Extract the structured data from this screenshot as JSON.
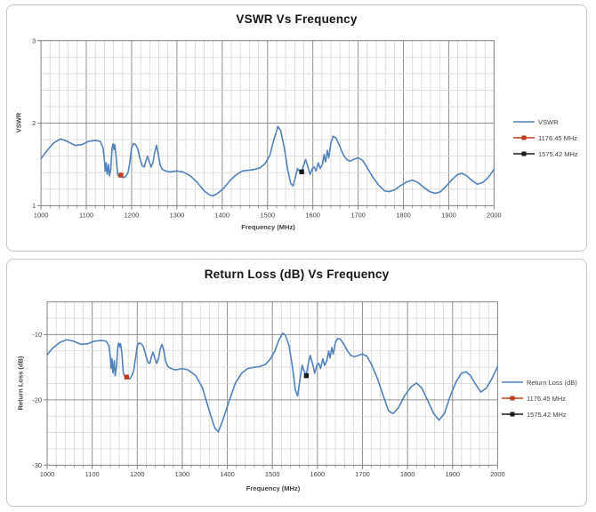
{
  "colors": {
    "series": "#4F81BD",
    "marker_red": "#C23B1D",
    "marker_black": "#1A1A1A",
    "grid_minor": "#D6D6D6",
    "grid_major": "#909090",
    "axis": "#7F7F7F",
    "panel_border": "#C6C6C6",
    "text": "#3F3F3F",
    "title": "#161616"
  },
  "chart_data": [
    {
      "type": "line",
      "title": "VSWR Vs Frequency",
      "xlabel": "Frequency (MHz)",
      "ylabel": "VSWR",
      "xlim": [
        1000,
        2000
      ],
      "ylim": [
        1,
        3
      ],
      "x_major": 100,
      "x_minor": 20,
      "y_major": 1,
      "y_minor": 0.2,
      "grid": true,
      "legend_position": "right",
      "x_ticks": [
        "1000",
        "1100",
        "1200",
        "1300",
        "1400",
        "1500",
        "1600",
        "1700",
        "1800",
        "1900",
        "2000"
      ],
      "y_ticks": [
        {
          "v": 1,
          "label": "1"
        },
        {
          "v": 2,
          "label": "2"
        },
        {
          "v": 3,
          "label": "3"
        }
      ],
      "legend": [
        {
          "label": "VSWR",
          "color": "#4F81BD",
          "marker": false
        },
        {
          "label": "1176.45 MHz",
          "color": "#C23B1D",
          "marker": true
        },
        {
          "label": "1575.42 MHz",
          "color": "#1A1A1A",
          "marker": true
        }
      ],
      "series": [
        {
          "name": "VSWR",
          "x": [
            1000,
            1012,
            1028,
            1043,
            1058,
            1075,
            1090,
            1105,
            1120,
            1131,
            1137,
            1140,
            1142,
            1144,
            1146,
            1149,
            1151,
            1154,
            1157,
            1159,
            1161,
            1163,
            1166,
            1169,
            1173,
            1178,
            1183,
            1188,
            1192,
            1196,
            1200,
            1204,
            1209,
            1214,
            1219,
            1224,
            1228,
            1232,
            1235,
            1239,
            1243,
            1247,
            1251,
            1255,
            1259,
            1263,
            1268,
            1275,
            1285,
            1300,
            1313,
            1330,
            1345,
            1360,
            1372,
            1380,
            1390,
            1403,
            1418,
            1432,
            1445,
            1460,
            1472,
            1484,
            1495,
            1505,
            1514,
            1523,
            1529,
            1537,
            1545,
            1551,
            1556,
            1561,
            1566,
            1570,
            1575,
            1580,
            1584,
            1589,
            1594,
            1599,
            1603,
            1607,
            1612,
            1616,
            1621,
            1625,
            1628,
            1632,
            1635,
            1640,
            1645,
            1651,
            1658,
            1666,
            1674,
            1682,
            1690,
            1700,
            1710,
            1720,
            1732,
            1745,
            1758,
            1768,
            1780,
            1793,
            1808,
            1820,
            1832,
            1845,
            1858,
            1870,
            1882,
            1895,
            1908,
            1920,
            1930,
            1940,
            1952,
            1963,
            1975,
            1987,
            2000
          ],
          "y": [
            1.57,
            1.66,
            1.76,
            1.81,
            1.78,
            1.73,
            1.74,
            1.78,
            1.79,
            1.78,
            1.7,
            1.55,
            1.42,
            1.52,
            1.38,
            1.5,
            1.36,
            1.44,
            1.7,
            1.75,
            1.68,
            1.74,
            1.58,
            1.38,
            1.35,
            1.35,
            1.34,
            1.36,
            1.4,
            1.52,
            1.7,
            1.75,
            1.74,
            1.68,
            1.56,
            1.48,
            1.47,
            1.55,
            1.6,
            1.53,
            1.47,
            1.52,
            1.65,
            1.73,
            1.62,
            1.49,
            1.44,
            1.42,
            1.41,
            1.42,
            1.41,
            1.36,
            1.28,
            1.18,
            1.13,
            1.12,
            1.15,
            1.21,
            1.31,
            1.38,
            1.42,
            1.43,
            1.44,
            1.46,
            1.51,
            1.61,
            1.8,
            1.96,
            1.91,
            1.7,
            1.42,
            1.27,
            1.24,
            1.33,
            1.45,
            1.42,
            1.41,
            1.49,
            1.56,
            1.47,
            1.38,
            1.45,
            1.47,
            1.42,
            1.52,
            1.45,
            1.5,
            1.62,
            1.53,
            1.67,
            1.58,
            1.76,
            1.84,
            1.82,
            1.74,
            1.63,
            1.56,
            1.54,
            1.56,
            1.58,
            1.55,
            1.46,
            1.35,
            1.25,
            1.18,
            1.17,
            1.19,
            1.24,
            1.29,
            1.31,
            1.28,
            1.22,
            1.17,
            1.15,
            1.17,
            1.24,
            1.32,
            1.38,
            1.39,
            1.36,
            1.3,
            1.26,
            1.28,
            1.34,
            1.44
          ]
        }
      ],
      "markers": [
        {
          "name": "1176.45 MHz",
          "x": 1176.45,
          "y": 1.37,
          "color": "#C23B1D"
        },
        {
          "name": "1575.42 MHz",
          "x": 1575.42,
          "y": 1.41,
          "color": "#1A1A1A"
        }
      ]
    },
    {
      "type": "line",
      "title": "Return Loss (dB) Vs Frequency",
      "xlabel": "Frequency (MHz)",
      "ylabel": "Return Loss (dB)",
      "xlim": [
        1000,
        2000
      ],
      "ylim": [
        -30,
        -5
      ],
      "x_major": 100,
      "x_minor": 20,
      "y_major": 10,
      "y_minor": 2.5,
      "grid": true,
      "legend_position": "right",
      "x_ticks": [
        "1000",
        "1100",
        "1200",
        "1300",
        "1400",
        "1500",
        "1600",
        "1700",
        "1800",
        "1900",
        "2000"
      ],
      "y_ticks": [
        {
          "v": -10,
          "label": "-10"
        },
        {
          "v": -20,
          "label": "-20"
        },
        {
          "v": -30,
          "label": "-30"
        }
      ],
      "legend": [
        {
          "label": "Return Loss (dB)",
          "color": "#4F81BD",
          "marker": false
        },
        {
          "label": "1176.45 MHz",
          "color": "#C23B1D",
          "marker": true
        },
        {
          "label": "1575.42 MHz",
          "color": "#1A1A1A",
          "marker": true
        }
      ],
      "series": [
        {
          "name": "Return Loss (dB)",
          "x": [
            1000,
            1012,
            1028,
            1043,
            1058,
            1075,
            1090,
            1105,
            1120,
            1131,
            1137,
            1140,
            1142,
            1144,
            1146,
            1149,
            1151,
            1154,
            1157,
            1159,
            1161,
            1163,
            1166,
            1169,
            1173,
            1178,
            1183,
            1188,
            1192,
            1196,
            1200,
            1204,
            1209,
            1214,
            1219,
            1224,
            1228,
            1232,
            1235,
            1239,
            1243,
            1247,
            1251,
            1255,
            1259,
            1263,
            1268,
            1275,
            1285,
            1300,
            1313,
            1330,
            1345,
            1360,
            1372,
            1380,
            1390,
            1403,
            1418,
            1432,
            1445,
            1460,
            1472,
            1484,
            1495,
            1505,
            1514,
            1523,
            1529,
            1537,
            1545,
            1551,
            1556,
            1561,
            1566,
            1570,
            1575,
            1580,
            1584,
            1589,
            1594,
            1599,
            1603,
            1607,
            1612,
            1616,
            1621,
            1625,
            1628,
            1632,
            1635,
            1640,
            1645,
            1651,
            1658,
            1666,
            1674,
            1682,
            1690,
            1700,
            1710,
            1720,
            1732,
            1745,
            1758,
            1768,
            1780,
            1793,
            1808,
            1820,
            1832,
            1845,
            1858,
            1870,
            1882,
            1895,
            1908,
            1920,
            1930,
            1940,
            1952,
            1963,
            1975,
            1987,
            2000
          ],
          "y": [
            -13.1,
            -12.1,
            -11.2,
            -10.8,
            -11.0,
            -11.5,
            -11.4,
            -11.0,
            -10.9,
            -11.0,
            -11.7,
            -13.3,
            -15.2,
            -13.7,
            -15.9,
            -14.0,
            -16.3,
            -14.9,
            -11.7,
            -11.3,
            -11.9,
            -11.4,
            -13.0,
            -15.9,
            -16.5,
            -16.5,
            -16.8,
            -16.3,
            -15.6,
            -13.7,
            -11.7,
            -11.3,
            -11.4,
            -11.9,
            -13.2,
            -14.3,
            -14.4,
            -13.3,
            -12.7,
            -13.6,
            -14.4,
            -13.7,
            -12.2,
            -11.5,
            -12.5,
            -14.1,
            -14.9,
            -15.2,
            -15.4,
            -15.2,
            -15.4,
            -16.3,
            -18.2,
            -21.7,
            -24.3,
            -24.9,
            -23.1,
            -20.4,
            -17.4,
            -15.9,
            -15.2,
            -15.0,
            -14.9,
            -14.6,
            -13.8,
            -12.6,
            -10.9,
            -9.8,
            -10.1,
            -11.7,
            -15.2,
            -18.5,
            -19.4,
            -17.0,
            -14.7,
            -15.5,
            -16.3,
            -14.4,
            -13.2,
            -14.4,
            -15.9,
            -14.7,
            -14.4,
            -15.2,
            -13.7,
            -14.7,
            -14.0,
            -12.5,
            -13.6,
            -12.0,
            -13.0,
            -11.2,
            -10.6,
            -10.7,
            -11.4,
            -12.4,
            -13.2,
            -13.4,
            -13.2,
            -13.0,
            -13.3,
            -14.6,
            -16.5,
            -19.1,
            -21.7,
            -22.1,
            -21.2,
            -19.4,
            -18.0,
            -17.4,
            -18.2,
            -20.1,
            -22.1,
            -23.1,
            -22.1,
            -19.4,
            -17.2,
            -15.9,
            -15.7,
            -16.3,
            -17.7,
            -18.8,
            -18.2,
            -16.8,
            -14.9
          ]
        }
      ],
      "markers": [
        {
          "name": "1176.45 MHz",
          "x": 1176.45,
          "y": -16.5,
          "color": "#C23B1D"
        },
        {
          "name": "1575.42 MHz",
          "x": 1575.42,
          "y": -16.3,
          "color": "#1A1A1A"
        }
      ]
    }
  ]
}
